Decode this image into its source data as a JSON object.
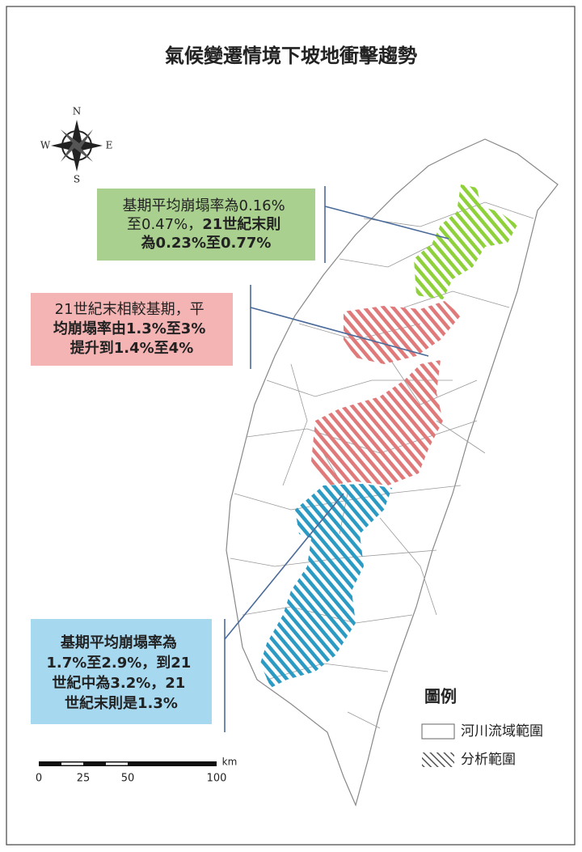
{
  "title": "氣候變遷情境下坡地衝擊趨勢",
  "compass": {
    "n": "N",
    "s": "S",
    "e": "E",
    "w": "W"
  },
  "callouts": [
    {
      "lines": [
        [
          "基期平均崩塌率為0.16%"
        ],
        [
          "至0.47%，",
          "21世紀末則"
        ],
        [
          "為0.23%至0.77%"
        ]
      ]
    },
    {
      "lines": [
        [
          "21世紀末相較基期，平"
        ],
        [
          "均崩塌率由1.3%至3%"
        ],
        [
          "提升到1.4%至4%"
        ]
      ]
    },
    {
      "lines": [
        [
          "基期平均崩塌率為"
        ],
        [
          "1.7%至2.9%，到21"
        ],
        [
          "世紀中為3.2%，21"
        ],
        [
          "世紀末則是1.3%"
        ]
      ]
    }
  ],
  "legend": {
    "title": "圖例",
    "items": [
      "河川流域範圍",
      "分析範圍"
    ]
  },
  "scale": {
    "labels": [
      0,
      25,
      50,
      100
    ],
    "unit": "km"
  }
}
